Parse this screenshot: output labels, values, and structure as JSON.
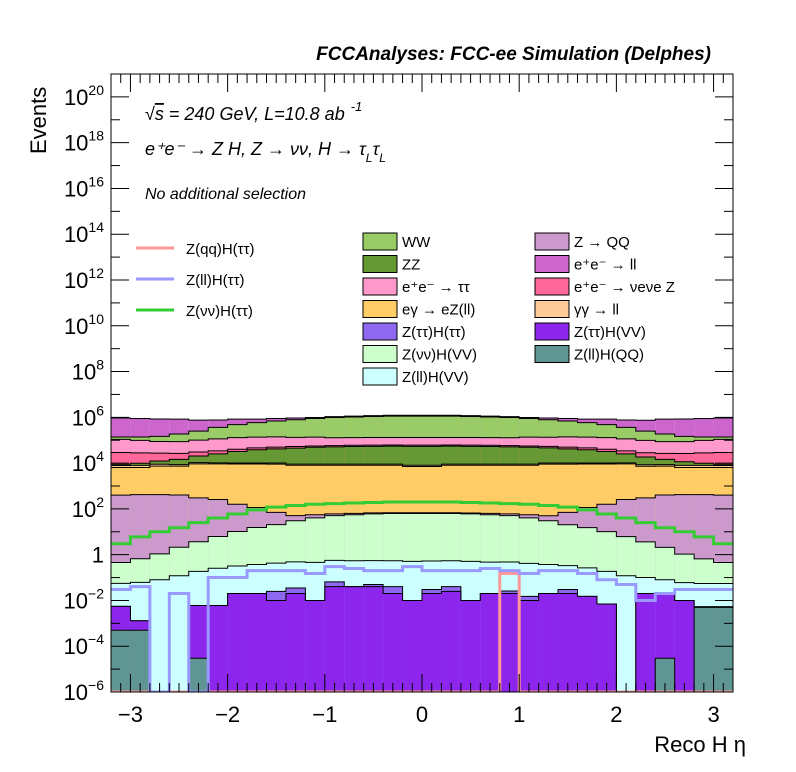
{
  "chart_data": {
    "type": "area",
    "title": "FCCAnalyses: FCC-ee Simulation (Delphes)",
    "xlabel": "Reco H η",
    "ylabel": "Events",
    "log_y": true,
    "xlim": [
      -3.2,
      3.2
    ],
    "ylim": [
      1e-06,
      1e+21
    ],
    "x_ticks": [
      -3,
      -2,
      -1,
      0,
      1,
      2,
      3
    ],
    "x_tick_labels": [
      "−3",
      "−2",
      "−1",
      "0",
      "1",
      "2",
      "3"
    ],
    "y_ticks": [
      {
        "base": "10",
        "exp": "−6",
        "value": 1e-06
      },
      {
        "base": "10",
        "exp": "−4",
        "value": 0.0001
      },
      {
        "base": "10",
        "exp": "−2",
        "value": 0.01
      },
      {
        "base": "1",
        "exp": "",
        "value": 1
      },
      {
        "base": "10",
        "exp": "2",
        "value": 100.0
      },
      {
        "base": "10",
        "exp": "4",
        "value": 10000.0
      },
      {
        "base": "10",
        "exp": "6",
        "value": 1000000.0
      },
      {
        "base": "10",
        "exp": "8",
        "value": 100000000.0
      },
      {
        "base": "10",
        "exp": "10",
        "value": 10000000000.0
      },
      {
        "base": "10",
        "exp": "12",
        "value": 1000000000000.0
      },
      {
        "base": "10",
        "exp": "14",
        "value": 100000000000000.0
      },
      {
        "base": "10",
        "exp": "16",
        "value": 1e+16
      },
      {
        "base": "10",
        "exp": "18",
        "value": 1e+18
      },
      {
        "base": "10",
        "exp": "20",
        "value": 1e+20
      }
    ],
    "annotations": [
      "√s = 240 GeV, L=10.8 ab⁻¹",
      "e⁺e⁻ → Z H, Z → νν, H → τLτL",
      "No additional selection"
    ],
    "bin_edges_start": -3.2,
    "bin_width": 0.2,
    "stacked_backgrounds": [
      {
        "name": "Z(ll)H(QQ)",
        "color": "#5f9694",
        "values": [
          0.0005,
          0.0005,
          1e-07,
          1e-07,
          3e-05,
          1e-07,
          1e-07,
          1e-07,
          1e-07,
          1e-07,
          1e-07,
          1e-07,
          1e-07,
          1e-07,
          1e-07,
          1e-07,
          1e-07,
          1e-07,
          1e-07,
          1e-07,
          1e-07,
          1e-07,
          1e-07,
          1e-07,
          1e-07,
          1e-07,
          1e-07,
          1e-07,
          3e-05,
          1e-07,
          0.005,
          0.005
        ]
      },
      {
        "name": "Z(ττ)H(VV)",
        "color": "#8d26ec",
        "values": [
          0.005,
          0.0008,
          1e-07,
          1e-07,
          0.006,
          0.006,
          0.02,
          0.02,
          0.01,
          0.02,
          0.01,
          0.04,
          0.04,
          0.04,
          0.02,
          0.01,
          0.02,
          0.025,
          0.01,
          0.02,
          0.02,
          0.01,
          0.02,
          0.02,
          0.015,
          0.007,
          1e-07,
          0.02,
          0.02,
          0.01,
          0.0003,
          0.0003
        ]
      },
      {
        "name": "Z(ττ)H(ττ)",
        "color": "#8f68f0",
        "values": [
          1e-07,
          1e-07,
          1e-07,
          1e-07,
          1e-07,
          1e-07,
          1e-07,
          1e-07,
          0.015,
          0.015,
          1e-07,
          0.025,
          1e-07,
          0.01,
          0.02,
          1e-07,
          0.01,
          0.015,
          1e-07,
          1e-07,
          0.006,
          0.005,
          1e-07,
          0.01,
          1e-07,
          1e-07,
          1e-07,
          1e-07,
          1e-07,
          1e-07,
          1e-07,
          1e-07
        ]
      },
      {
        "name": "Z(ll)H(VV)",
        "color": "#ccffff",
        "values": [
          0.05,
          0.06,
          0.08,
          0.12,
          0.18,
          0.25,
          0.3,
          0.35,
          0.4,
          0.45,
          0.45,
          0.5,
          0.5,
          0.5,
          0.5,
          0.5,
          0.5,
          0.5,
          0.5,
          0.45,
          0.45,
          0.4,
          0.35,
          0.3,
          0.25,
          0.18,
          0.12,
          0.08,
          0.06,
          0.05,
          0.05,
          0.05
        ]
      },
      {
        "name": "Z(νν)H(VV)",
        "color": "#ccffcc",
        "values": [
          0.4,
          0.6,
          1,
          2,
          3.5,
          6,
          10,
          15,
          20,
          30,
          40,
          50,
          55,
          60,
          62,
          62,
          62,
          62,
          60,
          55,
          50,
          40,
          30,
          20,
          15,
          10,
          6,
          3.5,
          2,
          1,
          0.6,
          0.4
        ]
      },
      {
        "name": "Z → QQ",
        "color": "#cc99cc",
        "values": [
          400,
          420,
          420,
          400,
          300,
          250,
          150,
          100,
          50,
          20,
          15,
          10,
          8,
          6,
          5,
          5,
          5,
          5,
          6,
          8,
          10,
          15,
          20,
          50,
          100,
          150,
          250,
          300,
          400,
          420,
          420,
          400
        ]
      },
      {
        "name": "eγ → eZ(ll)",
        "color": "#ffcc66",
        "values": [
          6000,
          6000,
          7000,
          7000,
          9000,
          9000,
          9000,
          9000,
          9000,
          8000,
          8000,
          8000,
          8000,
          8000,
          8000,
          7000,
          7000,
          8000,
          8000,
          8000,
          8000,
          8000,
          9000,
          9000,
          9000,
          9000,
          9000,
          7000,
          7000,
          6000,
          6000,
          6000
        ]
      },
      {
        "name": "γγ → ll",
        "color": "#ffcc99",
        "values": [
          1500,
          1500,
          1500,
          1200,
          1200,
          1000,
          1000,
          1000,
          1000,
          1000,
          1000,
          1000,
          1000,
          1000,
          1000,
          1000,
          1000,
          1000,
          1000,
          1000,
          1000,
          1000,
          1000,
          1000,
          1000,
          1000,
          1000,
          1200,
          1200,
          1500,
          1500,
          1500
        ]
      },
      {
        "name": "ZZ",
        "color": "#669933",
        "values": [
          1000,
          2000,
          3500,
          6000,
          10000,
          15000,
          22000,
          28000,
          32000,
          36000,
          40000,
          42000,
          44000,
          45000,
          46000,
          46000,
          46000,
          46000,
          45000,
          44000,
          42000,
          40000,
          36000,
          32000,
          28000,
          22000,
          15000,
          10000,
          6000,
          3500,
          2000,
          1000
        ]
      },
      {
        "name": "e⁺e⁻ → νeνe Z",
        "color": "#ff6699",
        "values": [
          20000,
          18000,
          15000,
          12000,
          10000,
          9000,
          8000,
          8000,
          8000,
          8000,
          7000,
          7000,
          7000,
          7000,
          7000,
          7000,
          7000,
          7000,
          7000,
          7000,
          7000,
          7000,
          8000,
          8000,
          8000,
          8000,
          9000,
          10000,
          12000,
          15000,
          18000,
          20000
        ]
      },
      {
        "name": "e⁺e⁻ → ττ",
        "color": "#ff99cc",
        "values": [
          80000,
          70000,
          60000,
          60000,
          70000,
          80000,
          90000,
          90000,
          90000,
          80000,
          80000,
          70000,
          70000,
          70000,
          70000,
          70000,
          70000,
          70000,
          70000,
          70000,
          70000,
          80000,
          80000,
          90000,
          90000,
          90000,
          80000,
          70000,
          60000,
          60000,
          70000,
          80000
        ]
      },
      {
        "name": "WW",
        "color": "#99cc66",
        "values": [
          30000,
          40000,
          60000,
          100000,
          150000,
          250000,
          350000,
          450000,
          550000,
          650000,
          750000,
          850000,
          900000,
          950000,
          1000000,
          1000000,
          1000000,
          1000000,
          950000,
          900000,
          850000,
          750000,
          650000,
          550000,
          450000,
          350000,
          250000,
          150000,
          100000,
          60000,
          40000,
          30000
        ]
      },
      {
        "name": "e⁺e⁻ → ll",
        "color": "#cc66cc",
        "values": [
          800000,
          750000,
          700000,
          650000,
          500000,
          400000,
          350000,
          250000,
          200000,
          150000,
          100000,
          100000,
          100000,
          100000,
          100000,
          100000,
          100000,
          100000,
          100000,
          100000,
          100000,
          100000,
          150000,
          200000,
          250000,
          350000,
          400000,
          500000,
          650000,
          700000,
          750000,
          800000
        ]
      }
    ],
    "signal_lines": [
      {
        "name": "Z(qq)H(ττ)",
        "color": "#ff9999",
        "values": [
          1e-07,
          1e-07,
          1e-07,
          1e-07,
          1e-07,
          1e-07,
          1e-07,
          1e-07,
          1e-07,
          1e-07,
          1e-07,
          1e-07,
          1e-07,
          1e-07,
          1e-07,
          1e-07,
          1e-07,
          1e-07,
          1e-07,
          1e-07,
          0.15,
          1e-07,
          1e-07,
          1e-07,
          1e-07,
          1e-07,
          1e-07,
          1e-07,
          1e-07,
          1e-07,
          1e-07,
          1e-07
        ]
      },
      {
        "name": "Z(ll)H(ττ)",
        "color": "#9999ff",
        "values": [
          0.03,
          0.04,
          1e-07,
          0.02,
          1e-07,
          0.1,
          0.1,
          0.2,
          0.2,
          0.2,
          0.15,
          0.3,
          0.25,
          0.2,
          0.2,
          0.3,
          0.2,
          0.2,
          0.2,
          0.25,
          0.2,
          0.15,
          0.2,
          0.2,
          0.15,
          0.08,
          0.05,
          0.01,
          0.02,
          0.03,
          0.03,
          0.03
        ]
      },
      {
        "name": "Z(νν)H(ττ)",
        "color": "#33cc33",
        "values": [
          3,
          6,
          10,
          15,
          25,
          40,
          60,
          90,
          120,
          140,
          160,
          170,
          180,
          190,
          200,
          200,
          200,
          200,
          190,
          180,
          170,
          160,
          140,
          120,
          90,
          60,
          40,
          25,
          15,
          10,
          6,
          3
        ]
      }
    ],
    "legend": {
      "signals": [
        "Z(qq)H(ττ)",
        "Z(ll)H(ττ)",
        "Z(νν)H(ττ)"
      ],
      "backgrounds": [
        {
          "label": "WW",
          "color": "#99cc66"
        },
        {
          "label": "Z → QQ",
          "color": "#cc99cc"
        },
        {
          "label": "ZZ",
          "color": "#669933"
        },
        {
          "label": "e⁺e⁻ → ll",
          "color": "#cc66cc"
        },
        {
          "label": "e⁺e⁻ → ττ",
          "color": "#ff99cc"
        },
        {
          "label": "e⁺e⁻ → νeνe Z",
          "color": "#ff6699"
        },
        {
          "label": "eγ → eZ(ll)",
          "color": "#ffcc66"
        },
        {
          "label": "γγ → ll",
          "color": "#ffcc99"
        },
        {
          "label": "Z(ττ)H(ττ)",
          "color": "#8f68f0"
        },
        {
          "label": "Z(ττ)H(VV)",
          "color": "#8d26ec"
        },
        {
          "label": "Z(νν)H(VV)",
          "color": "#ccffcc"
        },
        {
          "label": "Z(ll)H(QQ)",
          "color": "#5f9694"
        },
        {
          "label": "Z(ll)H(VV)",
          "color": "#ccffff"
        }
      ]
    }
  }
}
